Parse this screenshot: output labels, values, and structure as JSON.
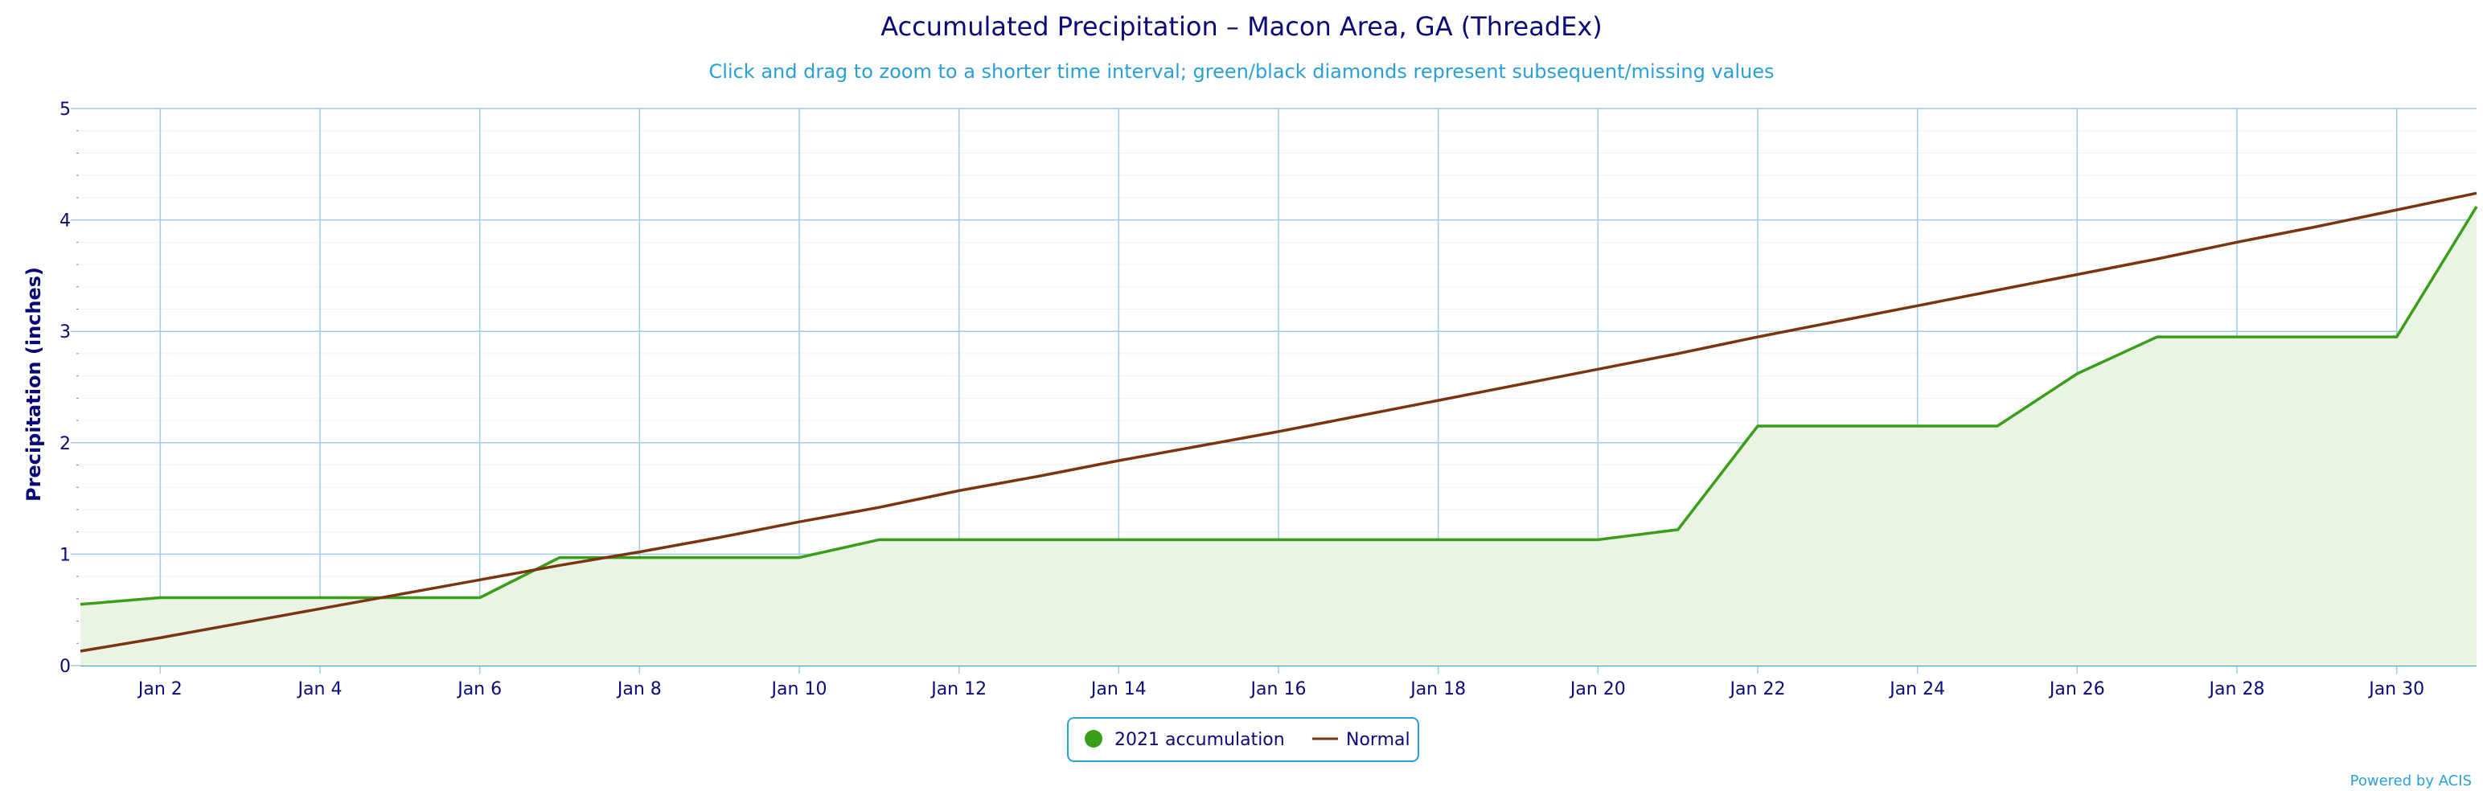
{
  "chart_data": {
    "type": "area",
    "title": "Accumulated Precipitation – Macon Area, GA (ThreadEx)",
    "subtitle": "Click and drag to zoom to a shorter time interval; green/black diamonds represent subsequent/missing values",
    "ylabel": "Precipitation (inches)",
    "xlabel": "",
    "ylim": [
      0,
      5
    ],
    "yticks": [
      0,
      1,
      2,
      3,
      4,
      5
    ],
    "xlim": [
      1,
      31
    ],
    "xticks": [
      {
        "day": 2,
        "label": "Jan 2"
      },
      {
        "day": 4,
        "label": "Jan 4"
      },
      {
        "day": 6,
        "label": "Jan 6"
      },
      {
        "day": 8,
        "label": "Jan 8"
      },
      {
        "day": 10,
        "label": "Jan 10"
      },
      {
        "day": 12,
        "label": "Jan 12"
      },
      {
        "day": 14,
        "label": "Jan 14"
      },
      {
        "day": 16,
        "label": "Jan 16"
      },
      {
        "day": 18,
        "label": "Jan 18"
      },
      {
        "day": 20,
        "label": "Jan 20"
      },
      {
        "day": 22,
        "label": "Jan 22"
      },
      {
        "day": 24,
        "label": "Jan 24"
      },
      {
        "day": 26,
        "label": "Jan 26"
      },
      {
        "day": 28,
        "label": "Jan 28"
      },
      {
        "day": 30,
        "label": "Jan 30"
      }
    ],
    "grid": true,
    "legend_position": "bottom-center",
    "series": [
      {
        "name": "2021 accumulation",
        "color": "#3a9e1a",
        "fill": "#eaf4e4",
        "marker": "circle",
        "x": [
          1,
          2,
          3,
          4,
          5,
          6,
          7,
          8,
          9,
          10,
          11,
          12,
          13,
          14,
          15,
          16,
          17,
          18,
          19,
          20,
          21,
          22,
          23,
          24,
          25,
          26,
          27,
          28,
          29,
          30,
          31
        ],
        "values": [
          0.55,
          0.61,
          0.61,
          0.61,
          0.61,
          0.61,
          0.97,
          0.97,
          0.97,
          0.97,
          1.13,
          1.13,
          1.13,
          1.13,
          1.13,
          1.13,
          1.13,
          1.13,
          1.13,
          1.13,
          1.22,
          2.15,
          2.15,
          2.15,
          2.15,
          2.62,
          2.95,
          2.95,
          2.95,
          2.95,
          4.12
        ]
      },
      {
        "name": "Normal",
        "color": "#7a3410",
        "marker": "line",
        "x": [
          1,
          2,
          3,
          4,
          5,
          6,
          7,
          8,
          9,
          10,
          11,
          12,
          13,
          14,
          15,
          16,
          17,
          18,
          19,
          20,
          21,
          22,
          23,
          24,
          25,
          26,
          27,
          28,
          29,
          30,
          31
        ],
        "values": [
          0.13,
          0.25,
          0.38,
          0.51,
          0.64,
          0.77,
          0.9,
          1.02,
          1.15,
          1.29,
          1.42,
          1.57,
          1.7,
          1.84,
          1.97,
          2.1,
          2.24,
          2.38,
          2.52,
          2.66,
          2.8,
          2.95,
          3.09,
          3.23,
          3.37,
          3.51,
          3.65,
          3.8,
          3.94,
          4.09,
          4.24
        ]
      }
    ]
  },
  "credit": "Powered by ACIS"
}
